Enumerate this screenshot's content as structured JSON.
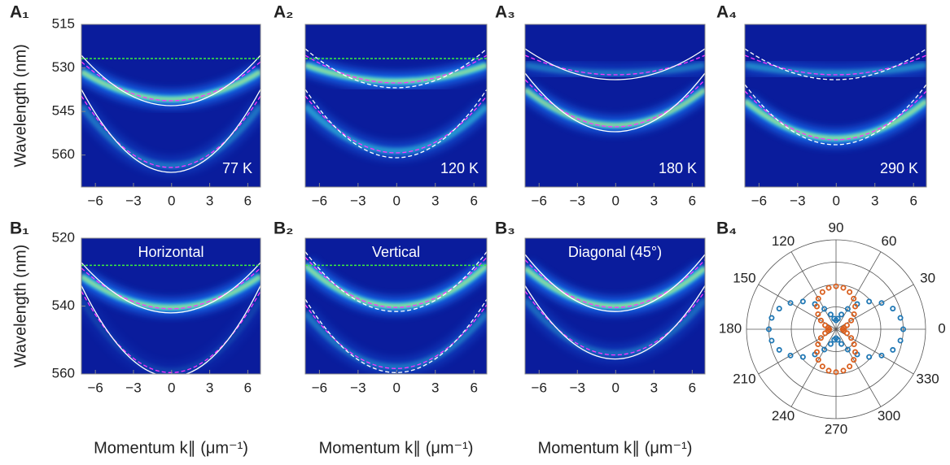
{
  "chart_data": [
    {
      "type": "heatmap",
      "panel": "A₁",
      "annotation": "77 K",
      "ylabel": "Wavelength (nm)",
      "xlim": [
        -7.1,
        7.0
      ],
      "ylim": [
        515,
        571
      ],
      "xticks": [
        {
          "value": -6,
          "label": "−6"
        },
        {
          "value": -3,
          "label": "−3"
        },
        0,
        3,
        6
      ],
      "yticks": [
        515,
        530,
        545,
        560
      ]
    },
    {
      "type": "heatmap",
      "panel": "A₂",
      "annotation": "120 K",
      "xlim": [
        -7.1,
        7.0
      ],
      "ylim": [
        515,
        571
      ],
      "xticks": [
        {
          "value": -6,
          "label": "−6"
        },
        {
          "value": -3,
          "label": "−3"
        },
        0,
        3,
        6
      ]
    },
    {
      "type": "heatmap",
      "panel": "A₃",
      "annotation": "180 K",
      "xlim": [
        -7.1,
        7.0
      ],
      "ylim": [
        515,
        571
      ],
      "xticks": [
        {
          "value": -6,
          "label": "−6"
        },
        {
          "value": -3,
          "label": "−3"
        },
        0,
        3,
        6
      ]
    },
    {
      "type": "heatmap",
      "panel": "A₄",
      "annotation": "290 K",
      "xlim": [
        -7.1,
        7.0
      ],
      "ylim": [
        515,
        571
      ],
      "xticks": [
        {
          "value": -6,
          "label": "−6"
        },
        {
          "value": -3,
          "label": "−3"
        },
        0,
        3,
        6
      ]
    },
    {
      "type": "heatmap",
      "panel": "B₁",
      "annotation": "Horizontal",
      "ylabel": "Wavelength (nm)",
      "xlabel": "Momentum k∥ (μm⁻¹)",
      "xlim": [
        -7.1,
        7.0
      ],
      "ylim": [
        520,
        560
      ],
      "xticks": [
        {
          "value": -6,
          "label": "−6"
        },
        {
          "value": -3,
          "label": "−3"
        },
        0,
        3,
        6
      ],
      "yticks": [
        520,
        540,
        560
      ]
    },
    {
      "type": "heatmap",
      "panel": "B₂",
      "annotation": "Vertical",
      "xlabel": "Momentum k∥ (μm⁻¹)",
      "xlim": [
        -7.1,
        7.0
      ],
      "ylim": [
        520,
        560
      ],
      "xticks": [
        {
          "value": -6,
          "label": "−6"
        },
        {
          "value": -3,
          "label": "−3"
        },
        0,
        3,
        6
      ]
    },
    {
      "type": "heatmap",
      "panel": "B₃",
      "annotation": "Diagonal (45°)",
      "xlabel": "Momentum k∥ (μm⁻¹)",
      "xlim": [
        -7.1,
        7.0
      ],
      "ylim": [
        520,
        560
      ],
      "xticks": [
        {
          "value": -6,
          "label": "−6"
        },
        {
          "value": -3,
          "label": "−3"
        },
        0,
        3,
        6
      ]
    },
    {
      "type": "polar",
      "panel": "B₄",
      "rlim": [
        0,
        4
      ],
      "rticks": [
        1,
        2,
        3,
        4
      ],
      "thetaticks": [
        0,
        30,
        60,
        90,
        120,
        150,
        180,
        210,
        240,
        270,
        300,
        330
      ],
      "theta": [
        0,
        10,
        20,
        30,
        40,
        50,
        60,
        70,
        80,
        90,
        100,
        110,
        120,
        130,
        140,
        150,
        160,
        170,
        180,
        190,
        200,
        210,
        220,
        230,
        240,
        250,
        260,
        270,
        280,
        290,
        300,
        310,
        320,
        330,
        340,
        350
      ],
      "series": [
        {
          "color": "#1f77b4",
          "values": [
            3.0,
            2.92,
            2.7,
            2.35,
            1.93,
            1.47,
            1.05,
            0.7,
            0.48,
            0.4,
            0.48,
            0.7,
            1.05,
            1.47,
            1.93,
            2.35,
            2.7,
            2.92,
            3.0,
            2.92,
            2.7,
            2.35,
            1.93,
            1.47,
            1.05,
            0.7,
            0.48,
            0.4,
            0.48,
            0.7,
            1.05,
            1.47,
            1.93,
            2.35,
            2.7,
            2.92
          ]
        },
        {
          "color": "#d95f1e",
          "values": [
            0.3,
            0.36,
            0.52,
            0.78,
            1.05,
            1.33,
            1.58,
            1.77,
            1.88,
            1.92,
            1.88,
            1.77,
            1.58,
            1.33,
            1.05,
            0.78,
            0.52,
            0.36,
            0.3,
            0.36,
            0.52,
            0.78,
            1.05,
            1.33,
            1.58,
            1.77,
            1.88,
            1.92,
            1.88,
            1.77,
            1.58,
            1.33,
            1.05,
            0.78,
            0.52,
            0.36
          ]
        }
      ]
    }
  ]
}
